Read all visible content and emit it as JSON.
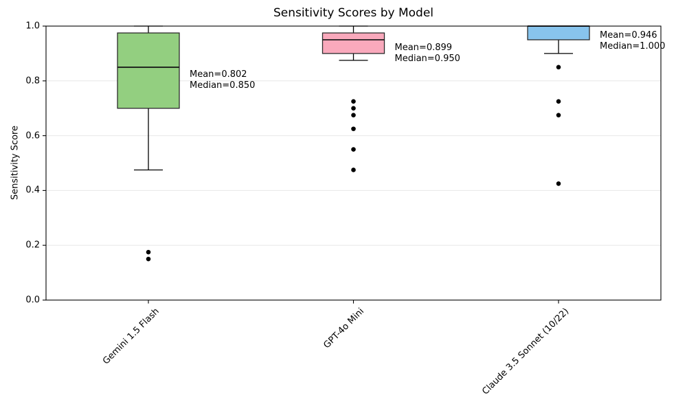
{
  "chart_data": {
    "type": "boxplot",
    "title": "Sensitivity Scores by Model",
    "ylabel": "Sensitivity Score",
    "xlabel": "",
    "ylim": [
      0.0,
      1.0
    ],
    "ytick_labels": [
      "0.0",
      "0.2",
      "0.4",
      "0.6",
      "0.8",
      "1.0"
    ],
    "grid": "horizontal-light",
    "legend": "none",
    "models": [
      {
        "name": "Gemini 1.5 Flash",
        "box_color": "#93cf80",
        "whisker_low": 0.475,
        "q1": 0.7,
        "median": 0.85,
        "q3": 0.975,
        "whisker_high": 1.0,
        "mean": 0.802,
        "outliers": [
          0.175,
          0.15
        ],
        "mean_label": "Mean=0.802",
        "median_label": "Median=0.850"
      },
      {
        "name": "GPT-4o Mini",
        "box_color": "#f9a9bc",
        "whisker_low": 0.875,
        "q1": 0.9,
        "median": 0.95,
        "q3": 0.975,
        "whisker_high": 1.0,
        "mean": 0.899,
        "outliers": [
          0.725,
          0.7,
          0.675,
          0.625,
          0.55,
          0.475
        ],
        "mean_label": "Mean=0.899",
        "median_label": "Median=0.950"
      },
      {
        "name": "Claude 3.5 Sonnet (10/22)",
        "box_color": "#88c4ed",
        "whisker_low": 0.9,
        "q1": 0.95,
        "median": 1.0,
        "q3": 1.0,
        "whisker_high": 1.0,
        "mean": 0.946,
        "outliers": [
          0.85,
          0.725,
          0.675,
          0.425
        ],
        "mean_label": "Mean=0.946",
        "median_label": "Median=1.000"
      }
    ],
    "colors": {
      "box_edge": "#2b2b2b",
      "median_line": "#111111",
      "whisker": "#000000",
      "outlier": "#000000",
      "grid": "#e7e7e7",
      "spine": "#000000",
      "text": "#000000"
    }
  }
}
